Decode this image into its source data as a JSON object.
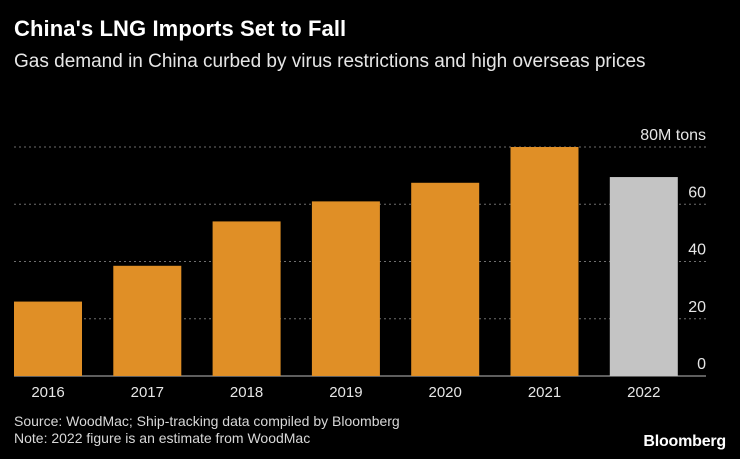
{
  "header": {
    "title": "China's LNG Imports Set to Fall",
    "subtitle": "Gas demand in China curbed by virus restrictions and high overseas prices"
  },
  "chart_data": {
    "type": "bar",
    "categories": [
      "2016",
      "2017",
      "2018",
      "2019",
      "2020",
      "2021",
      "2022"
    ],
    "values": [
      26,
      38.5,
      54,
      61,
      67.5,
      80,
      69.5
    ],
    "estimate_flags": [
      false,
      false,
      false,
      false,
      false,
      false,
      true
    ],
    "ylim": [
      0,
      80
    ],
    "yticks": [
      0,
      20,
      40,
      60,
      80
    ],
    "ytick_labels": [
      "0",
      "20",
      "40",
      "60",
      "80M tons"
    ],
    "grid": true,
    "colors": {
      "bar": "#e08f26",
      "estimate_bar": "#c4c4c4",
      "grid": "#6e6e6e"
    }
  },
  "footer": {
    "source": "Source: WoodMac; Ship-tracking data compiled by Bloomberg",
    "note": "Note: 2022 figure is an estimate from WoodMac"
  },
  "brand": "Bloomberg"
}
